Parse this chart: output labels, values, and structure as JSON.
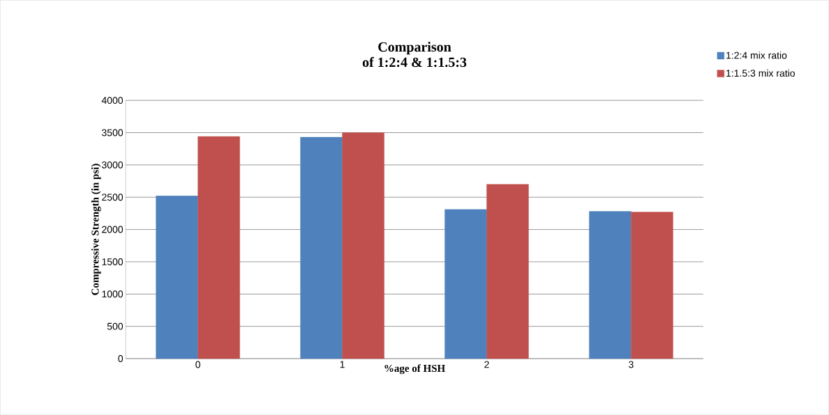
{
  "chart_data": {
    "type": "bar",
    "title": "Comparison\nof 1:2:4 & 1:1.5:3",
    "xlabel": "%age of HSH",
    "ylabel": "Compressive Strength (in psi)",
    "categories": [
      "0",
      "1",
      "2",
      "3"
    ],
    "series": [
      {
        "name": "1:2:4 mix ratio",
        "color": "#4f81bd",
        "values": [
          2520,
          3430,
          2310,
          2280
        ]
      },
      {
        "name": "1:1.5:3 mix ratio",
        "color": "#c0504d",
        "values": [
          3440,
          3500,
          2700,
          2270
        ]
      }
    ],
    "ylim": [
      0,
      4000
    ],
    "yticks": [
      0,
      500,
      1000,
      1500,
      2000,
      2500,
      3000,
      3500,
      4000
    ],
    "grid": "y",
    "legend": "top right"
  }
}
